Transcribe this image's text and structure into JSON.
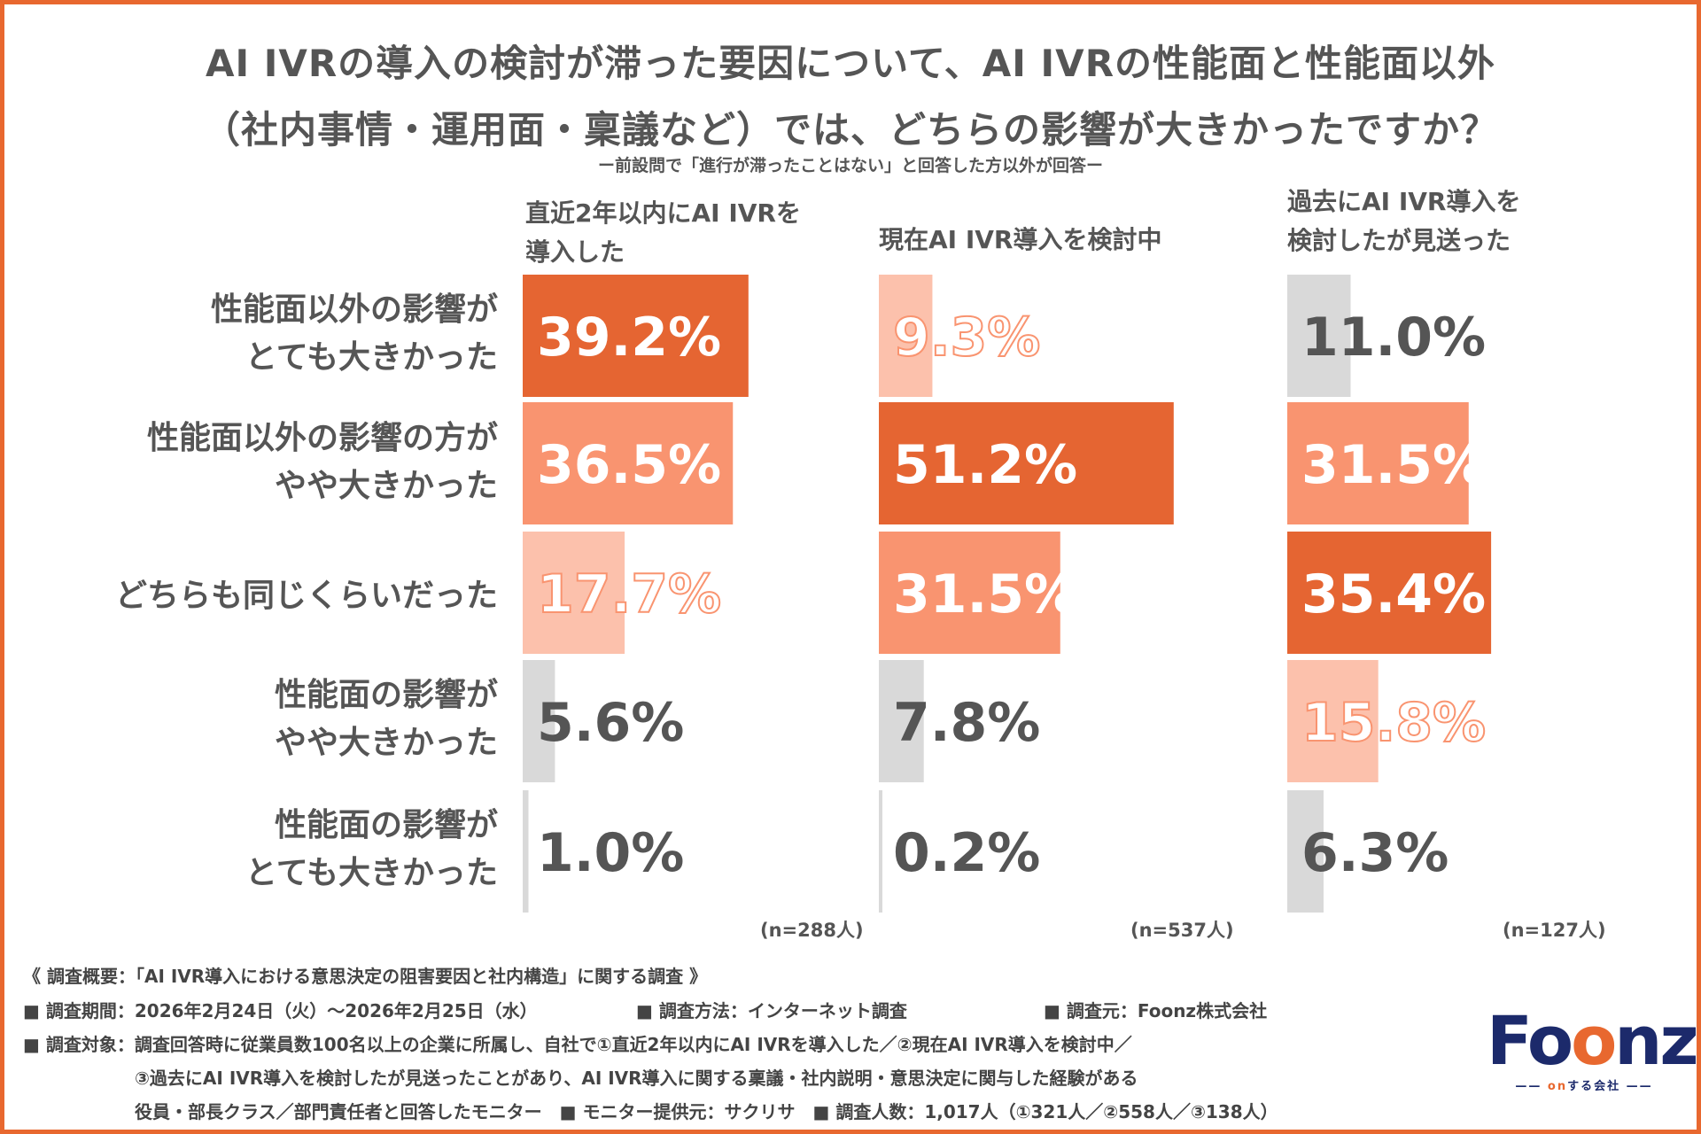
{
  "title": {
    "line1": "AI IVRの導入の検討が滞った要因について、AI IVRの性能面と性能面以外",
    "line2": "（社内事情・運用面・稟議など）では、どちらの影響が大きかったですか？",
    "subtitle": "ー前設問で「進行が滞ったことはない」と回答した方以外が回答ー"
  },
  "chart_data": {
    "type": "bar",
    "orientation": "horizontal",
    "categories": [
      "性能面以外の影響がとても大きかった",
      "性能面以外の影響の方がやや大きかった",
      "どちらも同じくらいだった",
      "性能面の影響がやや大きかった",
      "性能面の影響がとても大きかった"
    ],
    "category_lines": [
      [
        "性能面以外の影響が",
        "とても大きかった"
      ],
      [
        "性能面以外の影響の方が",
        "やや大きかった"
      ],
      [
        "どちらも同じくらいだった"
      ],
      [
        "性能面の影響が",
        "やや大きかった"
      ],
      [
        "性能面の影響が",
        "とても大きかった"
      ]
    ],
    "unit": "%",
    "groups": [
      {
        "title_lines": [
          "直近2年以内にAI IVRを",
          "導入した"
        ],
        "n_label": "(n=288人)",
        "values": [
          39.2,
          36.5,
          17.7,
          5.6,
          1.0
        ],
        "value_labels": [
          "39.2%",
          "36.5%",
          "17.7%",
          "5.6%",
          "1.0%"
        ]
      },
      {
        "title_lines": [
          "現在AI IVR導入を検討中"
        ],
        "n_label": "(n=537人)",
        "values": [
          9.3,
          51.2,
          31.5,
          7.8,
          0.2
        ],
        "value_labels": [
          "9.3%",
          "51.2%",
          "31.5%",
          "7.8%",
          "0.2%"
        ]
      },
      {
        "title_lines": [
          "過去にAI IVR導入を",
          "検討したが見送った"
        ],
        "n_label": "(n=127人)",
        "values": [
          11.0,
          31.5,
          35.4,
          15.8,
          6.3
        ],
        "value_labels": [
          "11.0%",
          "31.5%",
          "35.4%",
          "15.8%",
          "6.3%"
        ]
      }
    ],
    "colors": {
      "first": "#e56532",
      "second": "#f99470",
      "third": "#fcc1ac",
      "other": "#d9d9d9",
      "frame": "#e8682f"
    }
  },
  "footer": {
    "overview": "《 調査概要：「AI IVR導入における意思決定の阻害要因と社内構造」に関する調査 》",
    "period": "■ 調査期間：2026年2月24日（火）～2026年2月25日（水）",
    "method": "■ 調査方法：インターネット調査",
    "source": "■ 調査元：Foonz株式会社",
    "target1": "■ 調査対象：調査回答時に従業員数100名以上の企業に所属し、自社で①直近2年以内にAI IVRを導入した／②現在AI IVR導入を検討中／",
    "target2": "③過去にAI IVR導入を検討したが見送ったことがあり、AI IVR導入に関する稟議・社内説明・意思決定に関与した経験がある",
    "target3": "役員・部長クラス／部門責任者と回答したモニター　■ モニター提供元：サクリサ　■ 調査人数：1,017人（①321人／②558人／③138人）"
  },
  "logo": {
    "name": "Foonz",
    "tagline": "onする会社"
  }
}
